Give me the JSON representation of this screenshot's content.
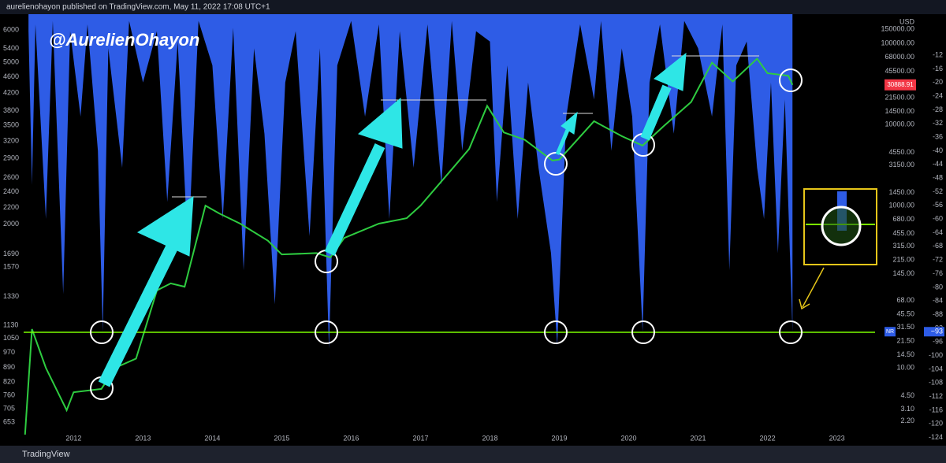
{
  "header": {
    "publisher": "aurelienohayon published on TradingView.com, May 11, 2022 17:08 UTC+1",
    "watermark": "@AurelienOhayon",
    "footer": "TradingView"
  },
  "chart_data": {
    "type": "line",
    "xlim": [
      2011.28,
      2023.55
    ],
    "xticks": [
      2012,
      2013,
      2014,
      2015,
      2016,
      2017,
      2018,
      2019,
      2020,
      2021,
      2022,
      2023
    ],
    "yscale": "log",
    "ylim": [
      1.64,
      210000
    ],
    "yunit": "USD",
    "yticks": [
      {
        "value": 150000,
        "label": "150000.00"
      },
      {
        "value": 100000,
        "label": "100000.00"
      },
      {
        "value": 68000,
        "label": "68000.00"
      },
      {
        "value": 45500,
        "label": "45500.00"
      },
      {
        "value": 21500,
        "label": "21500.00"
      },
      {
        "value": 14500,
        "label": "14500.00"
      },
      {
        "value": 10000,
        "label": "10000.00"
      },
      {
        "value": 4550,
        "label": "4550.00"
      },
      {
        "value": 3150,
        "label": "3150.00"
      },
      {
        "value": 1450,
        "label": "1450.00"
      },
      {
        "value": 1000,
        "label": "1000.00"
      },
      {
        "value": 680,
        "label": "680.00"
      },
      {
        "value": 455,
        "label": "455.00"
      },
      {
        "value": 315,
        "label": "315.00"
      },
      {
        "value": 215,
        "label": "215.00"
      },
      {
        "value": 145,
        "label": "145.00"
      },
      {
        "value": 68,
        "label": "68.00"
      },
      {
        "value": 45.5,
        "label": "45.50"
      },
      {
        "value": 31.5,
        "label": "31.50"
      },
      {
        "value": 21.5,
        "label": "21.50"
      },
      {
        "value": 14.5,
        "label": "14.50"
      },
      {
        "value": 10,
        "label": "10.00"
      },
      {
        "value": 4.5,
        "label": "4.50"
      },
      {
        "value": 3.1,
        "label": "3.10"
      },
      {
        "value": 2.2,
        "label": "2.20"
      }
    ],
    "y2lim": [
      -125,
      0
    ],
    "y2ticks": [
      -12,
      -16,
      -20,
      -24,
      -28,
      -32,
      -36,
      -40,
      -44,
      -48,
      -52,
      -56,
      -60,
      -64,
      -68,
      -72,
      -76,
      -80,
      -84,
      -88,
      -92,
      -96,
      -100,
      -104,
      -108,
      -112,
      -116,
      -120,
      -124
    ],
    "y3scale": "log",
    "y3lim": [
      620,
      6440
    ],
    "y3ticks": [
      6000,
      5400,
      5000,
      4600,
      4200,
      3800,
      3500,
      3200,
      2900,
      2600,
      2400,
      2200,
      2000,
      1690,
      1570,
      1330,
      1130,
      1050,
      970,
      890,
      820,
      760,
      705,
      653
    ],
    "series": [
      {
        "color": "#2e5ce6",
        "axis": "y2",
        "x": [
          2011.35,
          2011.4,
          2011.45,
          2011.6,
          2011.7,
          2011.85,
          2011.95,
          2012.1,
          2012.2,
          2012.35,
          2012.42,
          2012.5,
          2012.7,
          2012.8,
          2013.0,
          2013.2,
          2013.35,
          2013.5,
          2013.65,
          2013.8,
          2014.0,
          2014.15,
          2014.3,
          2014.45,
          2014.6,
          2014.75,
          2014.9,
          2015.05,
          2015.2,
          2015.4,
          2015.55,
          2015.68,
          2015.8,
          2016.0,
          2016.2,
          2016.4,
          2016.55,
          2016.7,
          2016.9,
          2017.1,
          2017.3,
          2017.45,
          2017.6,
          2017.8,
          2018.0,
          2018.1,
          2018.25,
          2018.4,
          2018.55,
          2018.7,
          2018.88,
          2018.97,
          2019.1,
          2019.3,
          2019.5,
          2019.6,
          2019.75,
          2019.9,
          2020.05,
          2020.2,
          2020.3,
          2020.45,
          2020.65,
          2020.8,
          2021.0,
          2021.2,
          2021.35,
          2021.45,
          2021.55,
          2021.7,
          2021.85,
          2021.95,
          2022.05,
          2022.15,
          2022.25,
          2022.36
        ],
        "values": [
          -5,
          -50,
          -3,
          -60,
          -2,
          -82,
          -5,
          -30,
          -3,
          -40,
          -93,
          -10,
          -45,
          -2,
          -20,
          -5,
          -55,
          -8,
          -70,
          -2,
          -15,
          -60,
          -4,
          -75,
          -10,
          -35,
          -85,
          -20,
          -5,
          -65,
          -10,
          -98,
          -15,
          -2,
          -30,
          -3,
          -60,
          -5,
          -45,
          -3,
          -50,
          -2,
          -40,
          -5,
          -8,
          -55,
          -15,
          -60,
          -20,
          -45,
          -70,
          -97,
          -30,
          -3,
          -25,
          -2,
          -40,
          -10,
          -30,
          -93,
          -20,
          -3,
          -35,
          -2,
          -10,
          -30,
          -3,
          -75,
          -15,
          -8,
          -45,
          -60,
          -20,
          -70,
          -25,
          -93
        ]
      },
      {
        "color": "#2ecc40",
        "axis": "y",
        "x": [
          2011.3,
          2011.4,
          2011.6,
          2011.9,
          2012.0,
          2012.4,
          2012.6,
          2012.9,
          2013.2,
          2013.4,
          2013.6,
          2013.9,
          2014.1,
          2014.4,
          2014.8,
          2015.0,
          2015.5,
          2015.7,
          2015.9,
          2016.4,
          2016.8,
          2017.0,
          2017.4,
          2017.7,
          2017.96,
          2018.2,
          2018.5,
          2018.9,
          2019.0,
          2019.5,
          2019.9,
          2020.2,
          2020.5,
          2020.9,
          2021.2,
          2021.5,
          2021.85,
          2022.0,
          2022.3,
          2022.36
        ],
        "values": [
          1.5,
          30,
          10,
          3,
          5,
          5.5,
          10,
          13,
          90,
          110,
          100,
          1000,
          800,
          600,
          370,
          250,
          260,
          230,
          400,
          600,
          700,
          1000,
          2500,
          5000,
          17000,
          8000,
          6500,
          3600,
          3700,
          11000,
          7200,
          5500,
          9500,
          19000,
          58000,
          34000,
          65000,
          43000,
          40000,
          30888.91
        ],
        "value_labels": {
          "39": "30888.91"
        }
      }
    ],
    "indicator_label": "NR",
    "indicator_value": {
      "value": -93,
      "label": "−93"
    }
  }
}
